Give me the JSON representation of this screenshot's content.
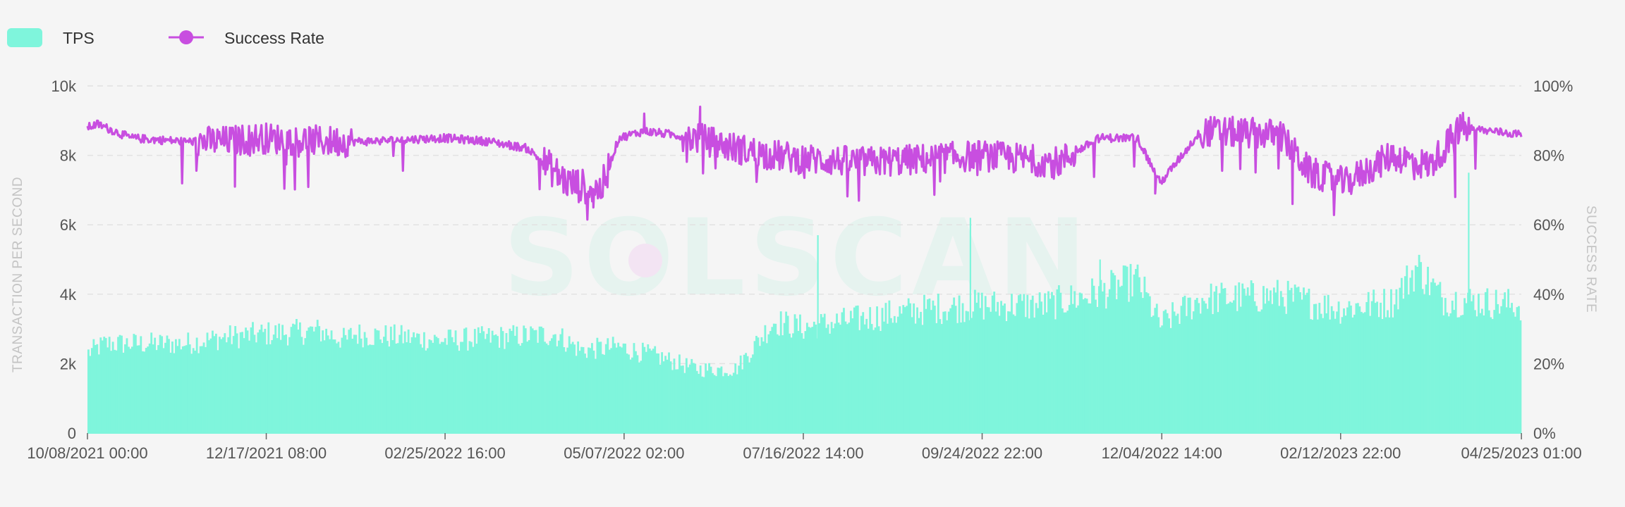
{
  "legend": {
    "tps_label": "TPS",
    "success_label": "Success Rate"
  },
  "watermark": "SOLSCAN",
  "colors": {
    "tps": "#7ff5dc",
    "success": "#c84ee0",
    "background": "#f5f5f5",
    "grid": "#e2e2e2"
  },
  "chart_data": {
    "type": "bar+line",
    "xlabel": "",
    "ylabel_left": "TRANSACTION PER SECOND",
    "ylabel_right": "SUCCESS RATE",
    "left_ticks": [
      "0",
      "2k",
      "4k",
      "6k",
      "8k",
      "10k"
    ],
    "right_ticks": [
      "0%",
      "20%",
      "40%",
      "60%",
      "80%",
      "100%"
    ],
    "ylim_left": [
      0,
      10000
    ],
    "ylim_right": [
      0,
      100
    ],
    "x_ticks": [
      "10/08/2021 00:00",
      "12/17/2021 08:00",
      "02/25/2022 16:00",
      "05/07/2022 02:00",
      "07/16/2022 14:00",
      "09/24/2022 22:00",
      "12/04/2022 14:00",
      "02/12/2023 22:00",
      "04/25/2023 01:00"
    ],
    "grid": true,
    "legend_position": "top-left",
    "series": [
      {
        "name": "TPS",
        "type": "bar",
        "axis": "left",
        "profile_dates": [
          "10/08/2021",
          "10/15/2021",
          "11/15/2021",
          "12/01/2021",
          "12/15/2021",
          "01/07/2022",
          "01/18/2022",
          "01/20/2022",
          "02/10/2022",
          "02/25/2022",
          "03/20/2022",
          "04/10/2022",
          "04/20/2022",
          "05/05/2022",
          "05/20/2022",
          "06/05/2022",
          "06/20/2022",
          "07/05/2022",
          "07/16/2022",
          "08/10/2022",
          "09/05/2022",
          "09/24/2022",
          "10/20/2022",
          "11/10/2022",
          "11/25/2022",
          "12/04/2022",
          "12/20/2022",
          "01/20/2023",
          "02/12/2023",
          "03/05/2023",
          "03/15/2023",
          "03/25/2023",
          "04/10/2023",
          "04/25/2023"
        ],
        "profile_values": [
          2500,
          2800,
          2800,
          3000,
          3100,
          3200,
          2900,
          3100,
          3000,
          2900,
          3000,
          3100,
          2600,
          2700,
          2400,
          2000,
          2000,
          3500,
          3300,
          3600,
          3900,
          4000,
          4000,
          4400,
          4800,
          3400,
          4200,
          4300,
          3900,
          4100,
          5200,
          4200,
          4100,
          4000
        ],
        "spikes": [
          {
            "date": "07/22/2022",
            "value": 5700
          },
          {
            "date": "09/20/2022",
            "value": 6200
          },
          {
            "date": "11/10/2022",
            "value": 5000
          },
          {
            "date": "04/04/2023",
            "value": 7500
          }
        ]
      },
      {
        "name": "Success Rate",
        "type": "line",
        "axis": "right",
        "profile_dates": [
          "10/08/2021",
          "10/12/2021",
          "10/25/2021",
          "11/15/2021",
          "12/01/2021",
          "12/15/2021",
          "01/10/2022",
          "01/25/2022",
          "02/25/2022",
          "03/15/2022",
          "03/30/2022",
          "04/15/2022",
          "04/28/2022",
          "05/05/2022",
          "05/15/2022",
          "06/05/2022",
          "06/20/2022",
          "07/05/2022",
          "07/16/2022",
          "08/10/2022",
          "09/05/2022",
          "09/24/2022",
          "10/10/2022",
          "10/25/2022",
          "11/10/2022",
          "11/25/2022",
          "12/04/2022",
          "12/20/2022",
          "01/20/2023",
          "02/01/2023",
          "02/15/2023",
          "03/05/2023",
          "03/20/2023",
          "04/01/2023",
          "04/25/2023"
        ],
        "profile_values": [
          88,
          89,
          85,
          84,
          84,
          85,
          84,
          84,
          85,
          84,
          82,
          72,
          70,
          85,
          87,
          85,
          82,
          80,
          79,
          78,
          79,
          80,
          79,
          78,
          85,
          85,
          72,
          87,
          86,
          75,
          72,
          80,
          77,
          88,
          86
        ],
        "dips": [
          {
            "date": "12/05/2021",
            "value": 71
          },
          {
            "date": "04/25/2022",
            "value": 65
          },
          {
            "date": "12/02/2022",
            "value": 69
          },
          {
            "date": "01/25/2023",
            "value": 66
          },
          {
            "date": "03/30/2023",
            "value": 68
          }
        ],
        "peaks": [
          {
            "date": "05/15/2022",
            "value": 92
          },
          {
            "date": "06/06/2022",
            "value": 94
          }
        ]
      }
    ]
  }
}
